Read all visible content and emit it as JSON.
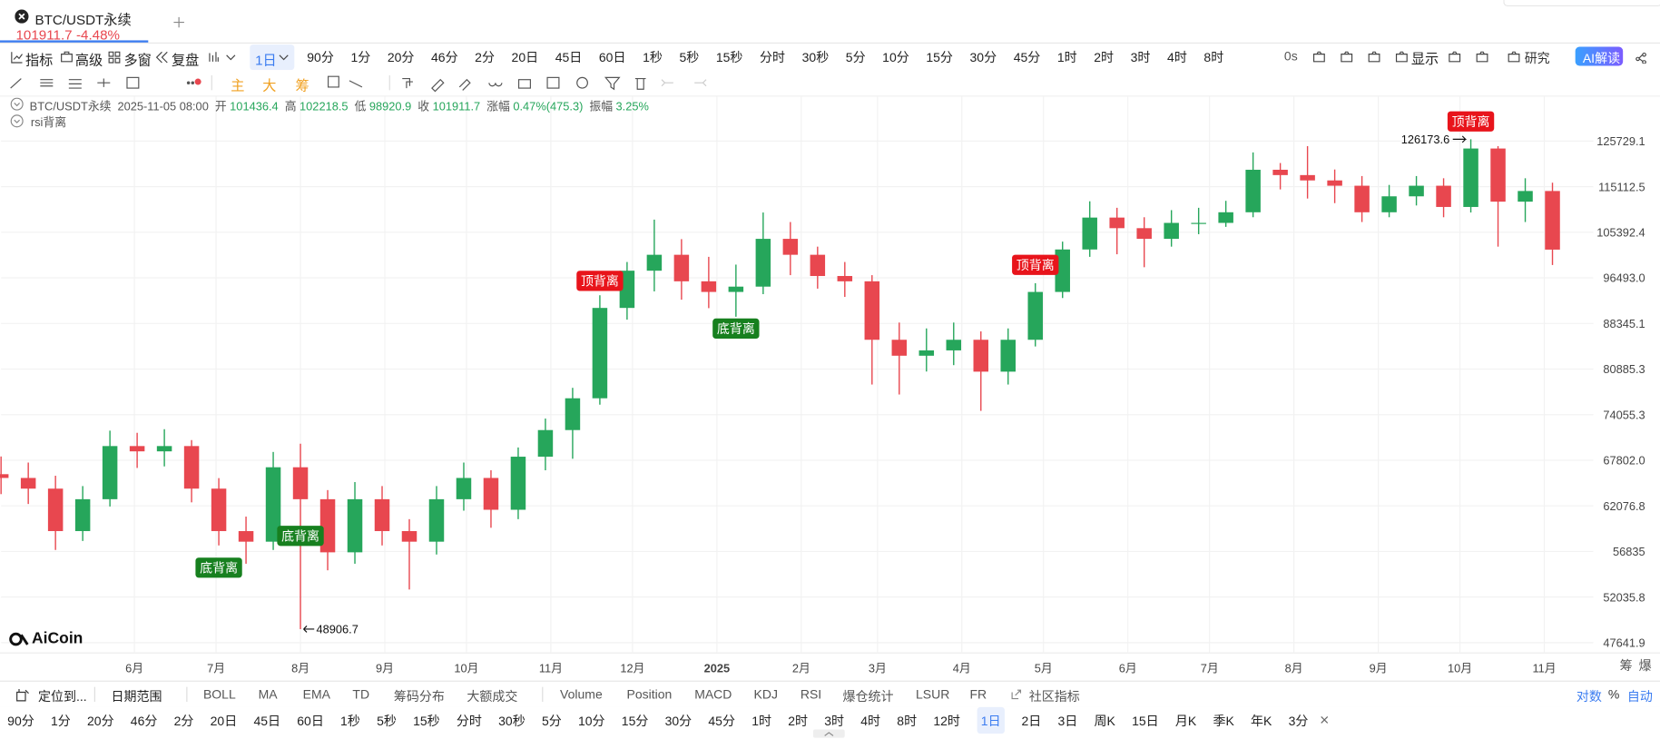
{
  "tab": {
    "symbol": "BTC/USDT永续",
    "price": "101911.7",
    "change": "-4.48%"
  },
  "toolbar": {
    "left": [
      "指标",
      "高级",
      "多窗",
      "复盘"
    ],
    "interval": "1日",
    "intervals": [
      "90分",
      "1分",
      "20分",
      "46分",
      "2分",
      "20日",
      "45日",
      "60日",
      "1秒",
      "5秒",
      "15秒",
      "分时",
      "30秒",
      "5分",
      "10分",
      "15分",
      "30分",
      "45分",
      "1时",
      "2时",
      "3时",
      "4时",
      "8时"
    ],
    "right": [
      "0s",
      "显示",
      "研究"
    ],
    "ai": "AI解读"
  },
  "main_indicators": [
    "主",
    "大",
    "筹"
  ],
  "legend": {
    "symbol": "BTC/USDT永续",
    "time": "2025-11-05 08:00",
    "items": [
      [
        "开",
        "101436.4"
      ],
      [
        "高",
        "102218.5"
      ],
      [
        "低",
        "98920.9"
      ],
      [
        "收",
        "101911.7"
      ],
      [
        "涨幅",
        "0.47%(475.3)"
      ],
      [
        "振幅",
        "3.25%"
      ]
    ],
    "indicator": "rsi背离"
  },
  "axis_corner": [
    "筹",
    "爆"
  ],
  "logo": "AiCoin",
  "bottom_bar": {
    "locate": "定位到...",
    "date_range": "日期范围",
    "indicators_a": [
      "BOLL",
      "MA",
      "EMA",
      "TD",
      "筹码分布",
      "大额成交"
    ],
    "indicators_b": [
      "Volume",
      "Position",
      "MACD",
      "KDJ",
      "RSI",
      "爆仓统计",
      "LSUR",
      "FR"
    ],
    "community": "社区指标",
    "scale": [
      "对数",
      "%",
      "自动"
    ]
  },
  "interval_bar": [
    "90分",
    "1分",
    "20分",
    "46分",
    "2分",
    "20日",
    "45日",
    "60日",
    "1秒",
    "5秒",
    "15秒",
    "分时",
    "30秒",
    "5分",
    "10分",
    "15分",
    "30分",
    "45分",
    "1时",
    "2时",
    "3时",
    "4时",
    "8时",
    "12时",
    "1日",
    "2日",
    "3日",
    "周K",
    "15日",
    "月K",
    "季K",
    "年K",
    "3分"
  ],
  "chart_data": {
    "type": "candlestick",
    "log": true,
    "grid": true,
    "up_color": "#26a65b",
    "down_color": "#e8474f",
    "x": [
      0,
      10,
      20,
      30,
      40,
      50,
      60,
      70,
      80,
      90,
      100,
      110,
      120,
      130,
      140,
      150,
      160,
      170,
      180,
      190,
      200,
      210,
      220,
      230,
      240,
      250,
      260,
      270,
      280,
      290,
      300,
      310,
      320,
      330,
      340,
      350,
      360,
      370,
      380,
      390,
      400,
      410,
      420,
      430,
      440,
      450,
      460,
      470,
      480,
      490,
      500,
      510,
      520,
      530,
      540,
      550,
      560,
      570
    ],
    "open": [
      66000,
      65520,
      64180,
      59120,
      62880,
      69690,
      68980,
      69690,
      64180,
      59120,
      57920,
      66890,
      62880,
      56740,
      62880,
      59120,
      57920,
      62880,
      65520,
      61610,
      68270,
      71880,
      76440,
      91040,
      97840,
      100900,
      95850,
      93900,
      94870,
      104060,
      100900,
      96840,
      95850,
      85600,
      83000,
      83860,
      85600,
      80480,
      85600,
      93900,
      101940,
      108430,
      106230,
      104060,
      107320,
      107320,
      109550,
      118940,
      117720,
      116510,
      115320,
      109550,
      112980,
      115320,
      110680,
      123930,
      111820,
      114150
    ],
    "high": [
      68300,
      67500,
      65800,
      64500,
      71800,
      71500,
      72000,
      70500,
      65500,
      60800,
      68900,
      70000,
      64000,
      65000,
      64500,
      60500,
      64500,
      67500,
      66500,
      69500,
      73500,
      78000,
      93300,
      99500,
      108000,
      104000,
      100500,
      99000,
      109500,
      107500,
      102500,
      99500,
      97000,
      88500,
      87500,
      88500,
      87000,
      87500,
      95500,
      103500,
      111900,
      110500,
      108500,
      110000,
      110500,
      112000,
      123000,
      120500,
      124500,
      119000,
      117500,
      115500,
      117500,
      117000,
      126173.6,
      124500,
      117000,
      116000
    ],
    "low": [
      63500,
      62300,
      57000,
      58000,
      62000,
      66800,
      67000,
      62500,
      57500,
      55500,
      57000,
      48906.7,
      54800,
      55500,
      57500,
      52800,
      56500,
      61500,
      59500,
      60500,
      66500,
      68000,
      75500,
      89000,
      94000,
      92500,
      91000,
      89500,
      93500,
      97000,
      94500,
      93000,
      78500,
      77000,
      80500,
      81500,
      74600,
      78500,
      84500,
      92800,
      100500,
      101000,
      98500,
      102500,
      105000,
      106500,
      108500,
      114500,
      112500,
      111500,
      107500,
      108500,
      111000,
      108500,
      109500,
      102500,
      107500,
      98920.9
    ],
    "close": [
      65520,
      64180,
      59120,
      62880,
      69690,
      68980,
      69690,
      64180,
      59120,
      57920,
      66890,
      62880,
      56740,
      62880,
      59120,
      57920,
      62880,
      65520,
      61610,
      68270,
      71880,
      76440,
      91040,
      97840,
      100900,
      95850,
      93900,
      94870,
      104060,
      100900,
      96840,
      95850,
      85600,
      83000,
      83860,
      85600,
      80480,
      85600,
      93900,
      101940,
      108430,
      106230,
      104060,
      107320,
      107320,
      109550,
      118940,
      117720,
      116510,
      115320,
      109550,
      112980,
      115320,
      110680,
      123930,
      111820,
      114150,
      101911.7
    ],
    "xlim": [
      0,
      585
    ],
    "xticks": [
      {
        "value": 49,
        "label": "6月"
      },
      {
        "value": 79,
        "label": "7月"
      },
      {
        "value": 110,
        "label": "8月"
      },
      {
        "value": 141,
        "label": "9月"
      },
      {
        "value": 171,
        "label": "10月"
      },
      {
        "value": 202,
        "label": "11月"
      },
      {
        "value": 232,
        "label": "12月"
      },
      {
        "value": 263,
        "label": "2025"
      },
      {
        "value": 294,
        "label": "2月"
      },
      {
        "value": 322,
        "label": "3月"
      },
      {
        "value": 353,
        "label": "4月"
      },
      {
        "value": 383,
        "label": "5月"
      },
      {
        "value": 414,
        "label": "6月"
      },
      {
        "value": 444,
        "label": "7月"
      },
      {
        "value": 475,
        "label": "8月"
      },
      {
        "value": 506,
        "label": "9月"
      },
      {
        "value": 536,
        "label": "10月"
      },
      {
        "value": 567,
        "label": "11月"
      }
    ],
    "ylim": [
      46700,
      137300
    ],
    "yticks": [
      125729.1,
      115112.5,
      105392.4,
      {
        "value": 96493,
        "label": "96493.0"
      },
      88345.1,
      80885.3,
      74055.3,
      {
        "value": 67802,
        "label": "67802.0"
      },
      62076.8,
      56835.0,
      52035.8,
      47641.9
    ],
    "signals": [
      {
        "label": "顶背离",
        "x": 220,
        "color": "#e8141b"
      },
      {
        "label": "顶背离",
        "x": 380,
        "color": "#e8141b"
      },
      {
        "label": "顶背离",
        "x": 540,
        "color": "#e8141b"
      },
      {
        "label": "底背离",
        "x": 80,
        "color": "#17801f"
      },
      {
        "label": "底背离",
        "x": 110,
        "color": "#17801f"
      },
      {
        "label": "底背离",
        "x": 270,
        "color": "#17801f"
      }
    ]
  }
}
